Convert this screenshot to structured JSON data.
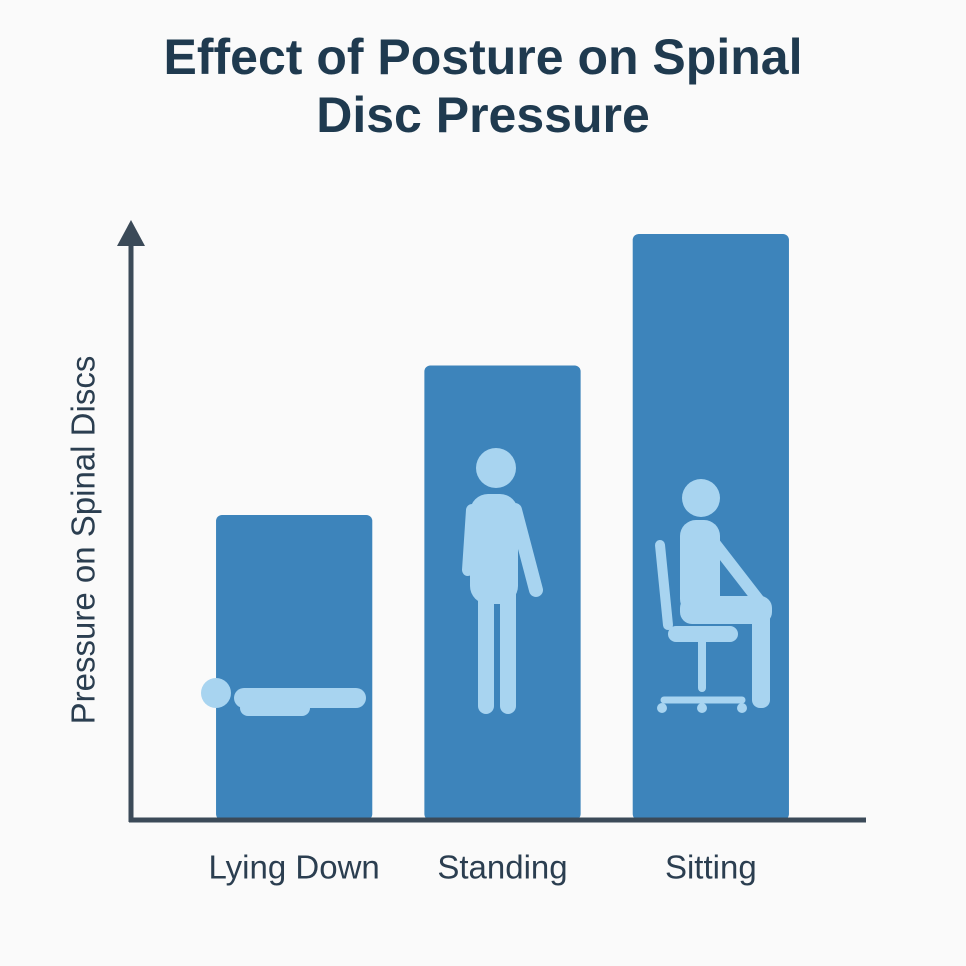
{
  "chart_data": {
    "type": "bar",
    "title": "Effect of Posture on Spinal Disc Pressure",
    "y_label": "Pressure on Spinal Discs",
    "categories": [
      "Lying Down",
      "Standing",
      "Sitting"
    ],
    "values": [
      51,
      76,
      98
    ],
    "color": "#3d84bb",
    "ylim": [
      0,
      100
    ],
    "grid": false
  }
}
